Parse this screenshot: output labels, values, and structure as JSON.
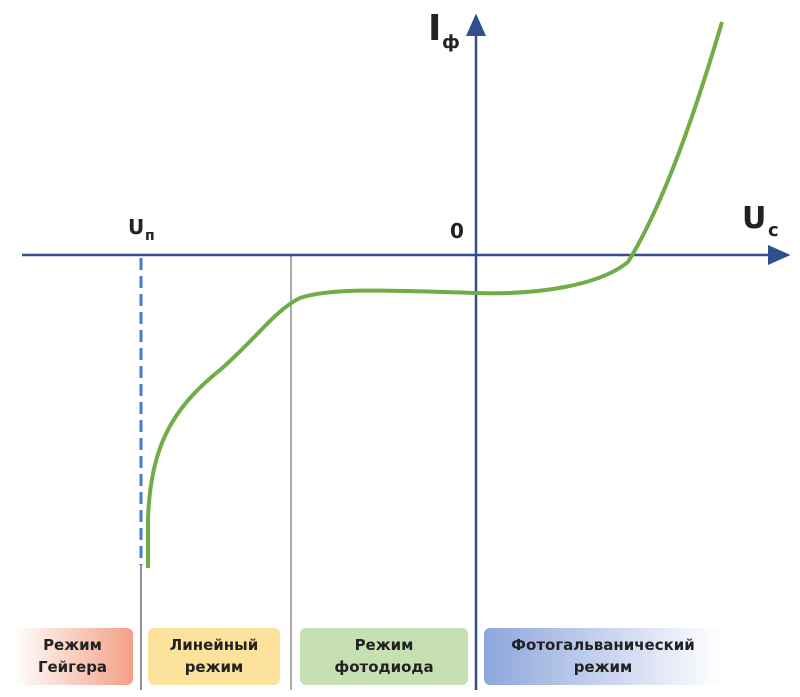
{
  "axes": {
    "y_label": "I",
    "y_sub": "ф",
    "x_label": "U",
    "x_sub": "с",
    "origin": "0",
    "breakdown_label": "U",
    "breakdown_sub": "п"
  },
  "regions": [
    {
      "lines": [
        "Режим",
        "Гейгера"
      ]
    },
    {
      "lines": [
        "Линейный",
        "режим"
      ]
    },
    {
      "lines": [
        "Режим",
        "фотодиода"
      ]
    },
    {
      "lines": [
        "Фотогальванический",
        "режим"
      ]
    }
  ]
}
